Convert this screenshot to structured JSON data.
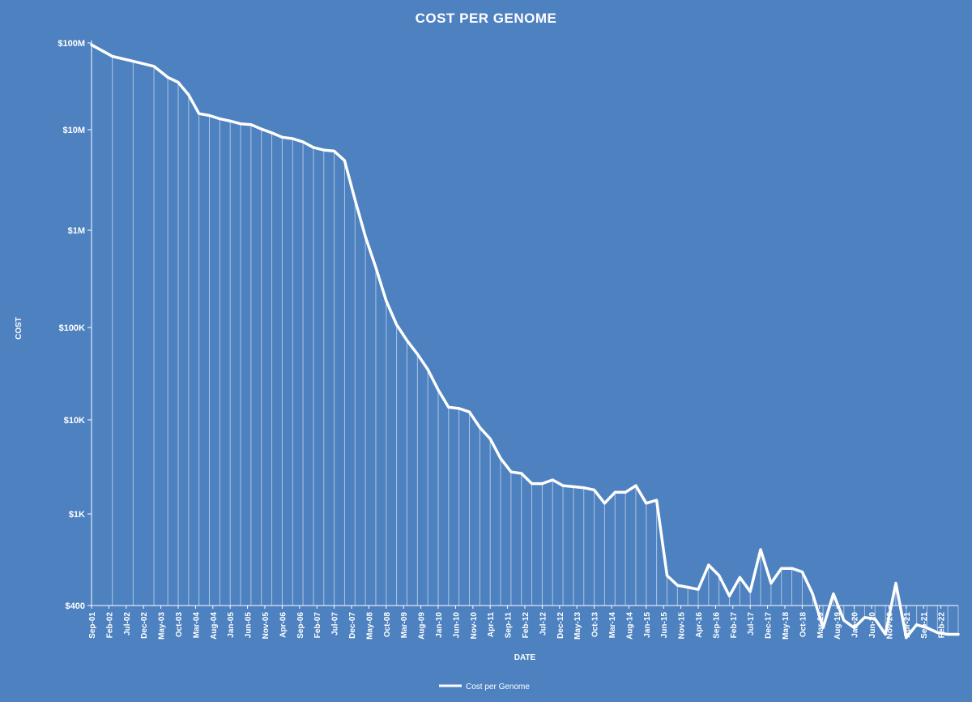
{
  "chart_data": {
    "type": "line",
    "title": "COST PER GENOME",
    "xlabel": "DATE",
    "ylabel": "COST",
    "y_scale": "log",
    "ylim": [
      400,
      100000000
    ],
    "y_ticks": [
      {
        "value": 400,
        "label": "$400"
      },
      {
        "value": 1000,
        "label": "$1K"
      },
      {
        "value": 10000,
        "label": "$10K"
      },
      {
        "value": 100000,
        "label": "$100K"
      },
      {
        "value": 1000000,
        "label": "$1M"
      },
      {
        "value": 10000000,
        "label": "$10M"
      },
      {
        "value": 100000000,
        "label": "$100M"
      }
    ],
    "x_tick_labels": [
      "Sep-01",
      "Feb-02",
      "Jul-02",
      "Dec-02",
      "May-03",
      "Oct-03",
      "Mar-04",
      "Aug-04",
      "Jan-05",
      "Jun-05",
      "Nov-05",
      "Apr-06",
      "Sep-06",
      "Feb-07",
      "Jul-07",
      "Dec-07",
      "May-08",
      "Oct-08",
      "Mar-09",
      "Aug-09",
      "Jan-10",
      "Jun-10",
      "Nov-10",
      "Apr-11",
      "Sep-11",
      "Feb-12",
      "Jul-12",
      "Dec-12",
      "May-13",
      "Oct-13",
      "Mar-14",
      "Aug-14",
      "Jan-15",
      "Jun-15",
      "Nov-15",
      "Apr-16",
      "Sep-16",
      "Feb-17",
      "Jul-17",
      "Dec-17",
      "May-18",
      "Oct-18",
      "Mar-19",
      "Aug-19",
      "Jan-20",
      "Jun-20",
      "Nov-20",
      "Apr-21",
      "Sep-21",
      "Feb-22"
    ],
    "grid": "vertical drop lines from each data point",
    "legend_position": "bottom-center",
    "line_color": "#ffffff",
    "background_color": "#4d81bf",
    "series": [
      {
        "name": "Cost per Genome",
        "x": [
          "Sep-01",
          "Mar-02",
          "Sep-02",
          "Mar-03",
          "Jul-03",
          "Oct-03",
          "Jan-04",
          "Apr-04",
          "Jul-04",
          "Oct-04",
          "Jan-05",
          "Apr-05",
          "Jul-05",
          "Oct-05",
          "Jan-06",
          "Apr-06",
          "Jul-06",
          "Oct-06",
          "Jan-07",
          "Apr-07",
          "Jul-07",
          "Oct-07",
          "Jan-08",
          "Apr-08",
          "Jul-08",
          "Oct-08",
          "Jan-09",
          "Apr-09",
          "Jul-09",
          "Oct-09",
          "Jan-10",
          "Apr-10",
          "Jul-10",
          "Oct-10",
          "Jan-11",
          "Apr-11",
          "Jul-11",
          "Oct-11",
          "Jan-12",
          "Apr-12",
          "Jul-12",
          "Oct-12",
          "Jan-13",
          "Apr-13",
          "Jul-13",
          "Oct-13",
          "Jan-14",
          "Apr-14",
          "Jul-14",
          "Oct-14",
          "Jan-15",
          "Apr-15",
          "Jul-15",
          "Oct-15",
          "Jan-16",
          "Apr-16",
          "Jul-16",
          "Oct-16",
          "Jan-17",
          "Apr-17",
          "Jul-17",
          "Oct-17",
          "Jan-18",
          "Apr-18",
          "Jul-18",
          "Oct-18",
          "Jan-19",
          "Apr-19",
          "Jul-19",
          "Oct-19",
          "Jan-20",
          "Apr-20",
          "Jul-20",
          "Oct-20",
          "Jan-21",
          "Apr-21",
          "Jul-21",
          "Oct-21",
          "Jan-22",
          "Apr-22",
          "Jul-22"
        ],
        "values": [
          95263072,
          70175437,
          61448422,
          53751684,
          40157554,
          35175792,
          25282320,
          15301126,
          14565854,
          13356472,
          12589000,
          11700000,
          11454800,
          10170000,
          9310000,
          8420000,
          8150000,
          7550000,
          6660000,
          6270000,
          6120000,
          4930000,
          2010000,
          859000,
          413000,
          188000,
          107000,
          72300,
          51600,
          35100,
          21100,
          13700,
          13300,
          12200,
          8300,
          6300,
          3900,
          2800,
          2700,
          2100,
          2100,
          2300,
          2000,
          1950,
          1900,
          1800,
          1300,
          1700,
          1700,
          2000,
          1300,
          1400,
          540,
          490,
          480,
          470,
          600,
          540,
          440,
          530,
          460,
          700,
          500,
          580,
          580,
          560,
          450,
          320,
          450,
          345,
          320,
          355,
          350,
          300,
          500,
          290,
          330,
          320,
          305,
          300,
          300
        ]
      }
    ]
  }
}
